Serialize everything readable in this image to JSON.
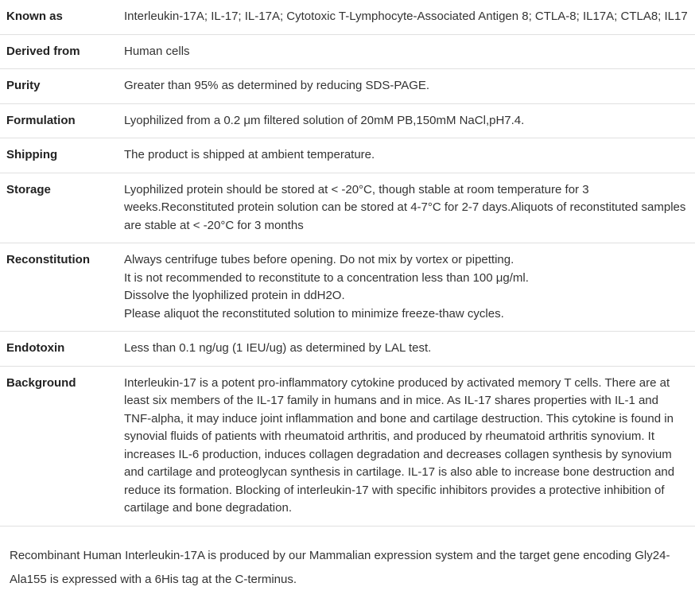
{
  "rows": [
    {
      "label": "Known as",
      "value": "Interleukin-17A; IL-17; IL-17A; Cytotoxic T-Lymphocyte-Associated Antigen 8; CTLA-8; IL17A; CTLA8; IL17"
    },
    {
      "label": "Derived from",
      "value": "Human cells"
    },
    {
      "label": "Purity",
      "value": "Greater than 95% as determined by reducing SDS-PAGE."
    },
    {
      "label": "Formulation",
      "value": "Lyophilized from a 0.2 μm filtered solution of 20mM PB,150mM NaCl,pH7.4."
    },
    {
      "label": "Shipping",
      "value": "The product is shipped at ambient temperature."
    },
    {
      "label": "Storage",
      "value": "Lyophilized protein should be stored at < -20°C, though stable at room temperature for 3 weeks.Reconstituted protein solution can be stored at 4-7°C for 2-7 days.Aliquots of reconstituted samples are stable at < -20°C for 3 months"
    },
    {
      "label": "Reconstitution",
      "lines": [
        "Always centrifuge tubes before opening. Do not mix by vortex or pipetting.",
        "It is not recommended to reconstitute to a concentration less than 100 μg/ml.",
        "Dissolve the lyophilized protein in ddH2O.",
        "Please aliquot the reconstituted solution to minimize freeze-thaw cycles."
      ]
    },
    {
      "label": "Endotoxin",
      "value": "Less than 0.1 ng/ug (1 IEU/ug) as determined by LAL test."
    },
    {
      "label": "Background",
      "value": "Interleukin-17 is a potent pro-inflammatory cytokine produced by activated memory T cells. There are at least six members of the IL-17 family in humans and in mice. As IL-17 shares properties with IL-1 and TNF-alpha, it may induce joint inflammation and bone and cartilage destruction. This cytokine is found in synovial fluids of patients with rheumatoid arthritis, and produced by rheumatoid arthritis synovium. It increases IL-6 production, induces collagen degradation and decreases collagen synthesis by synovium and cartilage and proteoglycan synthesis in cartilage. IL-17 is also able to increase bone destruction and reduce its formation. Blocking of interleukin-17 with specific inhibitors provides a protective inhibition of cartilage and bone degradation."
    }
  ],
  "footer": "Recombinant Human Interleukin-17A is produced by our Mammalian expression system and the target gene encoding Gly24-Ala155 is expressed with a 6His tag at the C-terminus."
}
